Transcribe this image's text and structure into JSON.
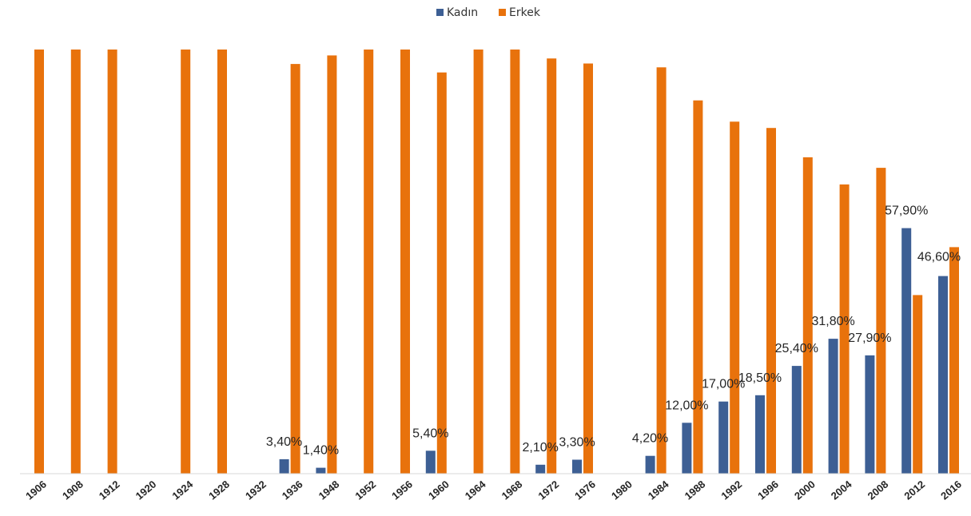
{
  "chart_data": {
    "type": "bar",
    "title": "",
    "xlabel": "",
    "ylabel": "",
    "ylim": [
      0,
      100
    ],
    "legend_position": "top-center",
    "grid": false,
    "colors": {
      "Kadın": "#3d5f94",
      "Erkek": "#e8720c",
      "axis": "#d9d9d9"
    },
    "categories": [
      "1906",
      "1908",
      "1912",
      "1920",
      "1924",
      "1928",
      "1932",
      "1936",
      "1948",
      "1952",
      "1956",
      "1960",
      "1964",
      "1968",
      "1972",
      "1976",
      "1980",
      "1984",
      "1988",
      "1992",
      "1996",
      "2000",
      "2004",
      "2008",
      "2012",
      "2016"
    ],
    "series": [
      {
        "name": "Kadın",
        "values": [
          null,
          null,
          null,
          null,
          null,
          null,
          null,
          3.4,
          1.4,
          null,
          null,
          5.4,
          null,
          null,
          2.1,
          3.3,
          null,
          4.2,
          12.0,
          17.0,
          18.5,
          25.4,
          31.8,
          27.9,
          57.9,
          46.6
        ],
        "labels": [
          "",
          "",
          "",
          "",
          "",
          "",
          "",
          "3,40%",
          "1,40%",
          "",
          "",
          "5,40%",
          "",
          "",
          "2,10%",
          "3,30%",
          "",
          "4,20%",
          "12,00%",
          "17,00%",
          "18,50%",
          "25,40%",
          "31,80%",
          "27,90%",
          "57,90%",
          "46,60%"
        ]
      },
      {
        "name": "Erkek",
        "values": [
          100,
          100,
          100,
          null,
          100,
          100,
          null,
          96.6,
          98.6,
          100,
          100,
          94.6,
          100,
          100,
          97.9,
          96.7,
          null,
          95.8,
          88.0,
          83.0,
          81.5,
          74.6,
          68.2,
          72.1,
          42.1,
          53.4
        ]
      }
    ]
  }
}
